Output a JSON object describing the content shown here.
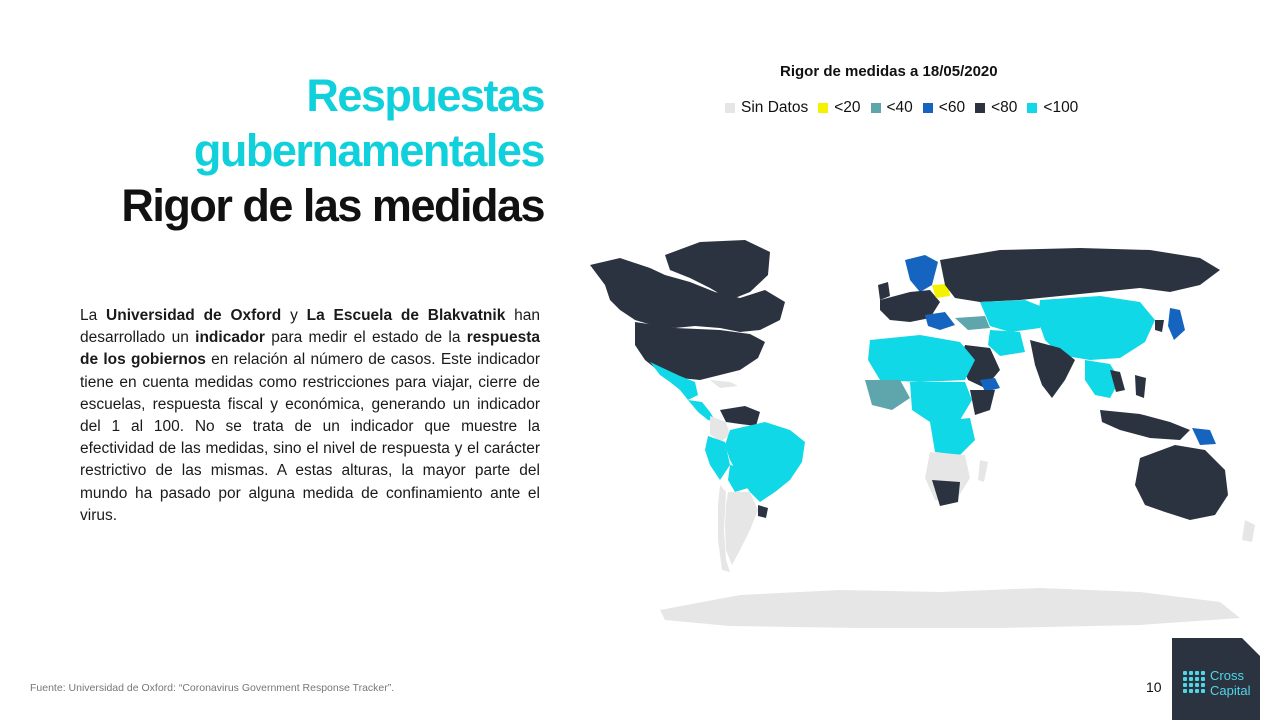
{
  "header": {
    "title_line1": "Respuestas",
    "title_line2": "gubernamentales",
    "title_line3": "Rigor de las medidas"
  },
  "body": {
    "p1": "La ",
    "b1": "Universidad de Oxford",
    "p2": " y ",
    "b2": "La Escuela de Blakvatnik",
    "p3": " han desarrollado un ",
    "b3": "indicador",
    "p4": " para medir el estado de la ",
    "b4": "respuesta de los gobiernos",
    "p5": " en relación al número de casos. Este indicador tiene en cuenta medidas como restricciones para viajar, cierre de escuelas, respuesta fiscal y económica, generando un indicador del 1 al 100. No se trata de un indicador que muestre la efectividad de las medidas, sino el nivel de respuesta y el carácter restrictivo de las mismas. A estas alturas, la mayor parte del mundo ha pasado por alguna medida de confinamiento ante el virus."
  },
  "map": {
    "title": "Rigor de medidas a 18/05/2020",
    "legend": [
      {
        "label": "Sin Datos",
        "color": "#e6e6e6"
      },
      {
        "label": "<20",
        "color": "#f5f200"
      },
      {
        "label": "<40",
        "color": "#5fa5ac"
      },
      {
        "label": "<60",
        "color": "#1565c0"
      },
      {
        "label": "<80",
        "color": "#2c3340"
      },
      {
        "label": "<100",
        "color": "#10d8e6"
      }
    ]
  },
  "footer": {
    "source": "Fuente:  Universidad de Oxford: “Coronavirus Government Response Tracker”.",
    "page_number": "10",
    "logo_line1": "Cross",
    "logo_line2": "Capital"
  }
}
